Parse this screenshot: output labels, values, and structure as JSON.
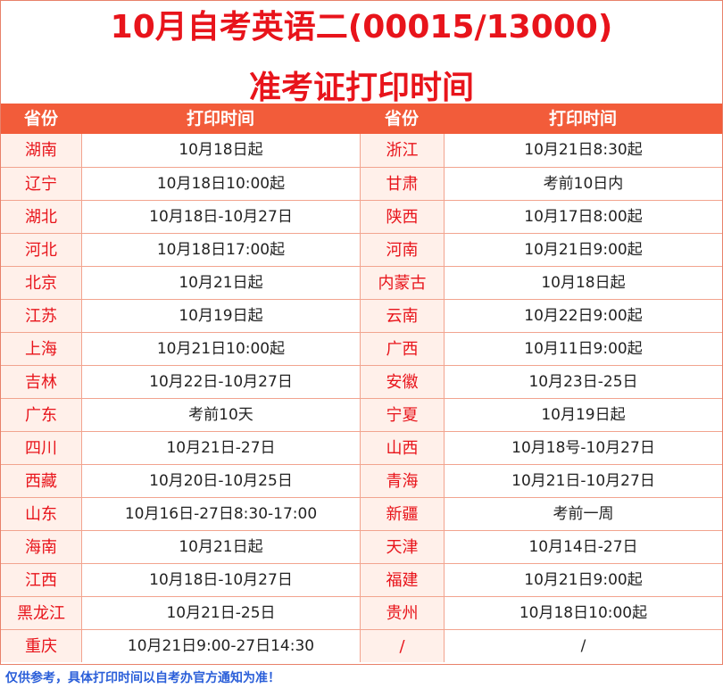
{
  "title_line1": "10月自考英语二(00015/13000)",
  "title_line2": "准考证打印时间",
  "headers": {
    "province_left": "省份",
    "time_left": "打印时间",
    "province_right": "省份",
    "time_right": "打印时间"
  },
  "rows": [
    {
      "p1": "湖南",
      "t1": "10月18日起",
      "p2": "浙江",
      "t2": "10月21日8:30起"
    },
    {
      "p1": "辽宁",
      "t1": "10月18日10:00起",
      "p2": "甘肃",
      "t2": "考前10日内"
    },
    {
      "p1": "湖北",
      "t1": "10月18日-10月27日",
      "p2": "陕西",
      "t2": "10月17日8:00起"
    },
    {
      "p1": "河北",
      "t1": "10月18日17:00起",
      "p2": "河南",
      "t2": "10月21日9:00起"
    },
    {
      "p1": "北京",
      "t1": "10月21日起",
      "p2": "内蒙古",
      "t2": "10月18日起"
    },
    {
      "p1": "江苏",
      "t1": "10月19日起",
      "p2": "云南",
      "t2": "10月22日9:00起"
    },
    {
      "p1": "上海",
      "t1": "10月21日10:00起",
      "p2": "广西",
      "t2": "10月11日9:00起"
    },
    {
      "p1": "吉林",
      "t1": "10月22日-10月27日",
      "p2": "安徽",
      "t2": "10月23日-25日"
    },
    {
      "p1": "广东",
      "t1": "考前10天",
      "p2": "宁夏",
      "t2": "10月19日起"
    },
    {
      "p1": "四川",
      "t1": "10月21日-27日",
      "p2": "山西",
      "t2": "10月18号-10月27日"
    },
    {
      "p1": "西藏",
      "t1": "10月20日-10月25日",
      "p2": "青海",
      "t2": "10月21日-10月27日"
    },
    {
      "p1": "山东",
      "t1": "10月16日-27日8:30-17:00",
      "p2": "新疆",
      "t2": "考前一周"
    },
    {
      "p1": "海南",
      "t1": "10月21日起",
      "p2": "天津",
      "t2": "10月14日-27日"
    },
    {
      "p1": "江西",
      "t1": "10月18日-10月27日",
      "p2": "福建",
      "t2": "10月21日9:00起"
    },
    {
      "p1": "黑龙江",
      "t1": "10月21日-25日",
      "p2": "贵州",
      "t2": "10月18日10:00起"
    },
    {
      "p1": "重庆",
      "t1": "10月21日9:00-27日14:30",
      "p2": "/",
      "t2": "/"
    }
  ],
  "footer_note": "仅供参考，具体打印时间以自考办官方通知为准！"
}
